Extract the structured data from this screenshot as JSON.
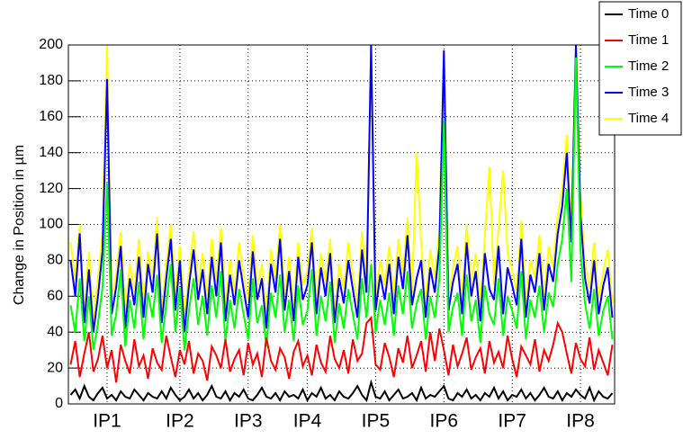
{
  "chart_data": {
    "type": "line",
    "ylabel": "Change in Position in µm",
    "categories": [
      null,
      null,
      null,
      null,
      null,
      null,
      null,
      null,
      "IP1",
      null,
      null,
      null,
      null,
      null,
      null,
      null,
      null,
      null,
      null,
      null,
      null,
      null,
      null,
      null,
      "IP2",
      null,
      null,
      null,
      null,
      null,
      null,
      null,
      null,
      null,
      null,
      null,
      null,
      null,
      null,
      "IP3",
      null,
      null,
      null,
      null,
      null,
      null,
      null,
      null,
      null,
      null,
      null,
      null,
      "IP4",
      null,
      null,
      null,
      null,
      null,
      null,
      null,
      null,
      null,
      null,
      null,
      null,
      null,
      null,
      "IP5",
      null,
      null,
      null,
      null,
      null,
      null,
      null,
      null,
      null,
      null,
      null,
      null,
      null,
      null,
      "IP6",
      null,
      null,
      null,
      null,
      null,
      null,
      null,
      null,
      null,
      null,
      null,
      null,
      null,
      null,
      "IP7",
      null,
      null,
      null,
      null,
      null,
      null,
      null,
      null,
      null,
      null,
      null,
      null,
      null,
      null,
      "IP8",
      null,
      null,
      null,
      null,
      null,
      null,
      null
    ],
    "series": [
      {
        "name": "Time 0",
        "color": "#000000",
        "values": [
          5,
          8,
          3,
          10,
          4,
          2,
          6,
          9,
          3,
          5,
          2,
          7,
          4,
          3,
          8,
          5,
          2,
          6,
          4,
          3,
          7,
          3,
          9,
          5,
          2,
          4,
          8,
          3,
          6,
          2,
          5,
          10,
          4,
          3,
          7,
          2,
          6,
          4,
          8,
          3,
          2,
          5,
          9,
          4,
          3,
          6,
          2,
          7,
          4,
          5,
          3,
          8,
          2,
          6,
          4,
          9,
          3,
          5,
          2,
          7,
          4,
          3,
          6,
          10,
          5,
          2,
          12,
          4,
          3,
          7,
          2,
          5,
          8,
          3,
          4,
          6,
          2,
          9,
          3,
          5,
          4,
          7,
          10,
          3,
          2,
          6,
          4,
          8,
          3,
          5,
          2,
          6,
          4,
          9,
          3,
          7,
          2,
          5,
          4,
          8,
          3,
          6,
          2,
          5,
          9,
          4,
          3,
          7,
          2,
          6,
          4,
          8,
          5,
          3,
          9,
          2,
          7,
          4,
          3,
          6
        ]
      },
      {
        "name": "Time 1",
        "color": "#ff0000",
        "values": [
          22,
          35,
          15,
          28,
          40,
          18,
          25,
          38,
          20,
          30,
          12,
          33,
          24,
          17,
          36,
          21,
          27,
          14,
          31,
          23,
          19,
          38,
          26,
          15,
          30,
          22,
          35,
          17,
          28,
          24,
          13,
          32,
          27,
          20,
          36,
          18,
          25,
          30,
          16,
          34,
          22,
          28,
          15,
          37,
          24,
          19,
          31,
          26,
          14,
          29,
          35,
          21,
          27,
          16,
          33,
          23,
          18,
          38,
          25,
          20,
          30,
          17,
          36,
          24,
          28,
          45,
          48,
          22,
          19,
          34,
          26,
          15,
          31,
          23,
          38,
          20,
          27,
          35,
          18,
          40,
          24,
          42,
          30,
          16,
          33,
          21,
          28,
          37,
          19,
          26,
          31,
          17,
          35,
          23,
          29,
          20,
          38,
          25,
          15,
          32,
          27,
          22,
          36,
          18,
          30,
          24,
          33,
          45,
          40,
          28,
          17,
          34,
          25,
          21,
          37,
          19,
          30,
          23,
          16,
          33
        ]
      },
      {
        "name": "Time 2",
        "color": "#00ff00",
        "values": [
          55,
          40,
          70,
          35,
          60,
          30,
          45,
          65,
          123,
          38,
          50,
          75,
          32,
          58,
          42,
          68,
          36,
          62,
          48,
          72,
          34,
          56,
          78,
          40,
          65,
          30,
          52,
          70,
          44,
          60,
          38,
          66,
          48,
          74,
          35,
          58,
          42,
          64,
          50,
          36,
          70,
          45,
          55,
          32,
          62,
          48,
          72,
          40,
          58,
          35,
          66,
          44,
          52,
          75,
          38,
          60,
          46,
          68,
          34,
          56,
          42,
          64,
          50,
          36,
          70,
          48,
          78,
          40,
          58,
          44,
          62,
          38,
          66,
          50,
          74,
          42,
          56,
          64,
          36,
          60,
          48,
          70,
          158,
          40,
          54,
          62,
          38,
          72,
          46,
          58,
          34,
          66,
          50,
          44,
          70,
          38,
          60,
          52,
          42,
          74,
          36,
          58,
          48,
          66,
          40,
          62,
          54,
          78,
          92,
          120,
          68,
          193,
          85,
          56,
          42,
          64,
          38,
          52,
          60,
          36
        ]
      },
      {
        "name": "Time 3",
        "color": "#0000ff",
        "values": [
          80,
          60,
          95,
          45,
          75,
          40,
          60,
          85,
          181,
          50,
          65,
          88,
          42,
          70,
          55,
          82,
          48,
          78,
          62,
          95,
          45,
          70,
          92,
          52,
          80,
          40,
          66,
          86,
          58,
          75,
          50,
          82,
          60,
          90,
          46,
          72,
          55,
          80,
          64,
          48,
          85,
          58,
          70,
          42,
          78,
          62,
          92,
          52,
          74,
          46,
          82,
          58,
          66,
          90,
          50,
          76,
          60,
          84,
          45,
          70,
          56,
          80,
          64,
          48,
          86,
          62,
          200,
          52,
          72,
          58,
          78,
          50,
          82,
          64,
          94,
          55,
          70,
          80,
          48,
          76,
          62,
          88,
          197,
          52,
          68,
          78,
          50,
          90,
          60,
          74,
          46,
          84,
          64,
          58,
          88,
          50,
          76,
          66,
          55,
          92,
          48,
          72,
          62,
          84,
          52,
          78,
          68,
          95,
          110,
          140,
          90,
          200,
          105,
          70,
          56,
          80,
          50,
          66,
          76,
          48
        ]
      },
      {
        "name": "Time 4",
        "color": "#ffff00",
        "values": [
          90,
          68,
          100,
          52,
          85,
          48,
          70,
          95,
          200,
          58,
          72,
          96,
          50,
          78,
          62,
          92,
          55,
          85,
          70,
          104,
          52,
          78,
          100,
          60,
          88,
          48,
          74,
          96,
          66,
          84,
          58,
          92,
          68,
          98,
          54,
          80,
          62,
          90,
          72,
          56,
          94,
          66,
          78,
          50,
          86,
          70,
          100,
          60,
          82,
          54,
          90,
          66,
          74,
          98,
          58,
          84,
          68,
          92,
          52,
          78,
          64,
          90,
          72,
          56,
          96,
          70,
          200,
          60,
          80,
          66,
          88,
          58,
          92,
          72,
          104,
          62,
          140,
          90,
          56,
          86,
          70,
          98,
          197,
          60,
          76,
          88,
          58,
          100,
          68,
          84,
          54,
          94,
          132,
          66,
          98,
          130,
          84,
          74,
          62,
          102,
          56,
          80,
          70,
          94,
          60,
          88,
          76,
          105,
          120,
          150,
          100,
          200,
          115,
          78,
          64,
          90,
          58,
          74,
          86,
          56
        ]
      }
    ],
    "ylim": [
      0,
      200
    ],
    "yticks": [
      0,
      20,
      40,
      60,
      80,
      100,
      120,
      140,
      160,
      180,
      200
    ],
    "grid": true,
    "legend": "top-right"
  }
}
